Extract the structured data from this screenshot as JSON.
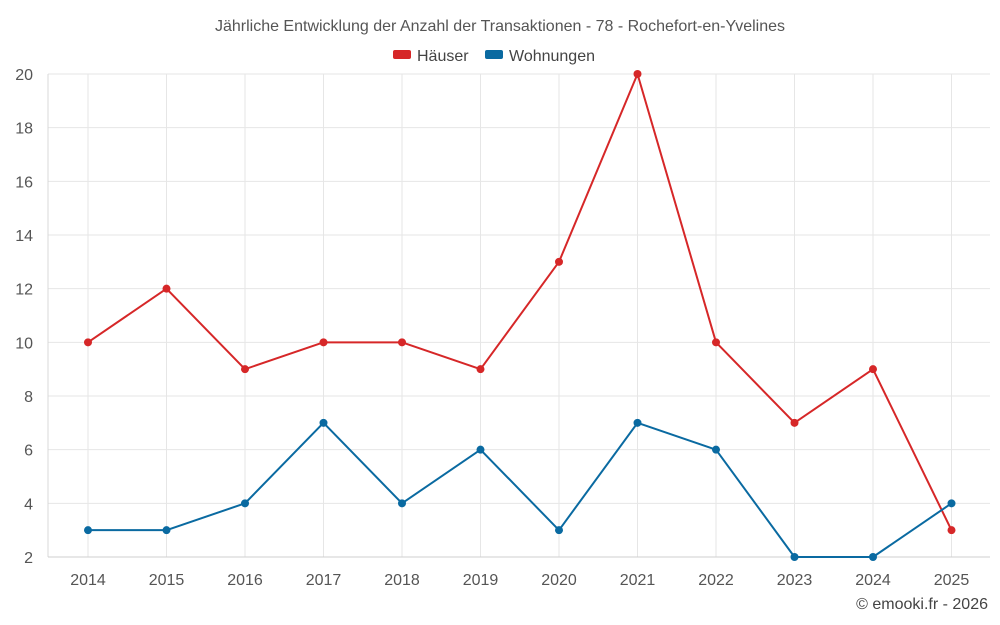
{
  "chart_data": {
    "type": "line",
    "title": "Jährliche Entwicklung der Anzahl der Transaktionen - 78 - Rochefort-en-Yvelines",
    "categories": [
      "2014",
      "2015",
      "2016",
      "2017",
      "2018",
      "2019",
      "2020",
      "2021",
      "2022",
      "2023",
      "2024",
      "2025"
    ],
    "series": [
      {
        "name": "Häuser",
        "color": "#d62728",
        "values": [
          10,
          12,
          9,
          10,
          10,
          9,
          13,
          20,
          10,
          7,
          9,
          3
        ]
      },
      {
        "name": "Wohnungen",
        "color": "#0a6aa1",
        "values": [
          3,
          3,
          4,
          7,
          4,
          6,
          3,
          7,
          6,
          2,
          2,
          4
        ]
      }
    ],
    "ylim": [
      2,
      20
    ],
    "yticks": [
      "2",
      "4",
      "6",
      "8",
      "10",
      "12",
      "14",
      "16",
      "18",
      "20"
    ],
    "grid": true,
    "legend_position": "top-center"
  },
  "credit": "© emooki.fr - 2026"
}
